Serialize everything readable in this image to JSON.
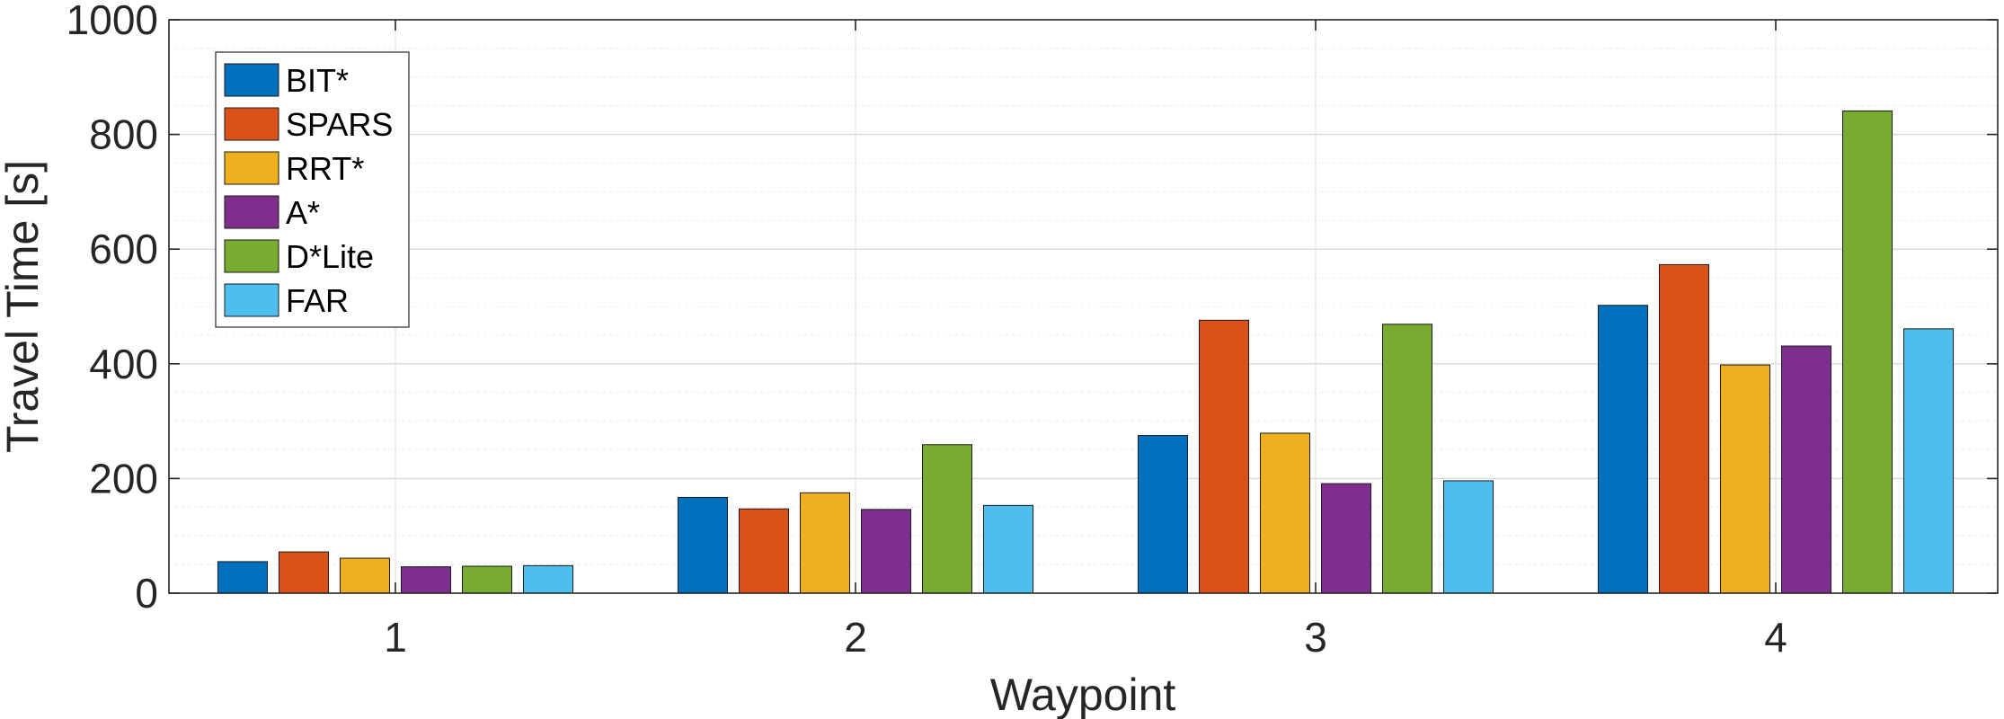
{
  "chart_data": {
    "type": "bar",
    "xlabel": "Waypoint",
    "ylabel": "Travel Time [s]",
    "categories": [
      "1",
      "2",
      "3",
      "4"
    ],
    "ylim": [
      0,
      1000
    ],
    "yticks": [
      0,
      200,
      400,
      600,
      800,
      1000
    ],
    "grid": true,
    "legend_position": "top-left",
    "series": [
      {
        "name": "BIT*",
        "color": "#0072BD",
        "values": [
          55,
          167,
          275,
          502
        ]
      },
      {
        "name": "SPARS",
        "color": "#D95319",
        "values": [
          72,
          147,
          476,
          573
        ]
      },
      {
        "name": "RRT*",
        "color": "#EDB120",
        "values": [
          61,
          175,
          279,
          398
        ]
      },
      {
        "name": "A*",
        "color": "#7E2F8E",
        "values": [
          46,
          146,
          191,
          431
        ]
      },
      {
        "name": "D*Lite",
        "color": "#77AC30",
        "values": [
          47,
          259,
          469,
          841
        ]
      },
      {
        "name": "FAR",
        "color": "#4DBEEE",
        "values": [
          48,
          153,
          196,
          461
        ]
      }
    ]
  }
}
